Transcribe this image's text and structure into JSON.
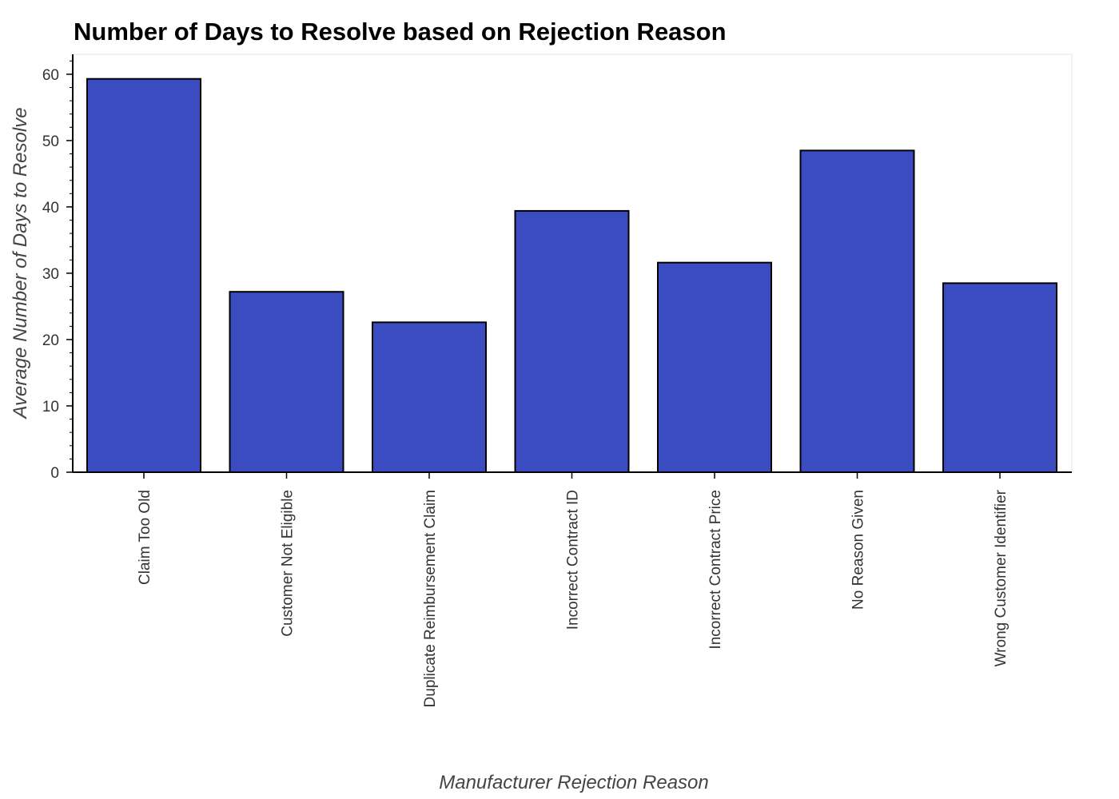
{
  "chart_data": {
    "type": "bar",
    "title": "Number of Days to Resolve based on Rejection Reason",
    "xlabel": "Manufacturer Rejection Reason",
    "ylabel": "Average Number of Days to Resolve",
    "categories": [
      "Claim Too Old",
      "Customer Not Eligible",
      "Duplicate Reimbursement Claim",
      "Incorrect Contract ID",
      "Incorrect Contract Price",
      "No Reason Given",
      "Wrong Customer Identifier"
    ],
    "values": [
      59.3,
      27.2,
      22.6,
      39.4,
      31.6,
      48.5,
      28.5
    ],
    "ylim": [
      0,
      63
    ],
    "yticks": [
      0,
      10,
      20,
      30,
      40,
      50,
      60
    ],
    "grid": false,
    "legend": "none",
    "bar_color": "#3b4cc0",
    "bar_edge_color": "#000000"
  }
}
